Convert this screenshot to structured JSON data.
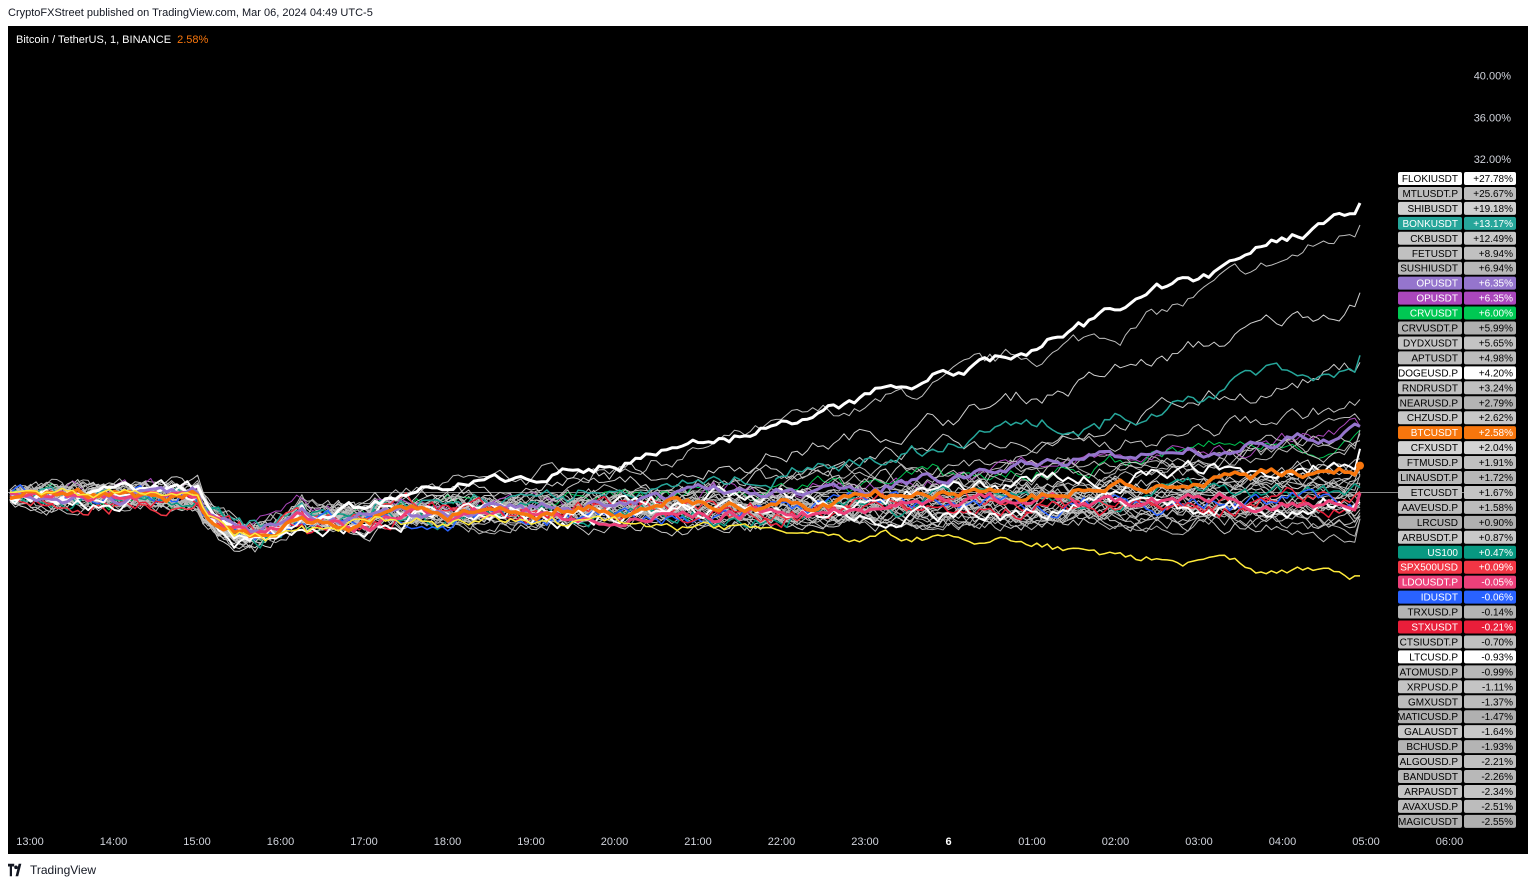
{
  "header": {
    "publisher_line": "CryptoFXStreet published on TradingView.com, Mar 06, 2024 04:49 UTC-5"
  },
  "legend": {
    "symbol": "Bitcoin / TetherUS, 1, BINANCE",
    "change": "2.58%"
  },
  "footer": {
    "brand": "TradingView"
  },
  "chart_data": {
    "type": "line",
    "x": [
      "13:00",
      "14:00",
      "15:00",
      "16:00",
      "17:00",
      "18:00",
      "19:00",
      "20:00",
      "21:00",
      "22:00",
      "23:00",
      "6",
      "01:00",
      "02:00",
      "03:00",
      "04:00",
      "05:00",
      "06:00"
    ],
    "y_ticks": [
      "40.00%",
      "36.00%",
      "32.00%"
    ],
    "y_tick_values": [
      40,
      36,
      32
    ],
    "ylim": [
      -32,
      44
    ],
    "baseline": 0,
    "series": [
      {
        "name": "FLOKIUSDT",
        "value": "+27.78%",
        "color": "#ffffff",
        "label_text": "#000000",
        "width": 3
      },
      {
        "name": "MTLUSDT.P",
        "value": "+25.67%",
        "color": "#bdbdbd",
        "label_text": "#000000",
        "width": 1
      },
      {
        "name": "SHIBUSDT",
        "value": "+19.18%",
        "color": "#d0d0d0",
        "label_text": "#000000",
        "width": 1
      },
      {
        "name": "BONKUSDT",
        "value": "+13.17%",
        "color": "#26a69a",
        "label_text": "#ffffff",
        "width": 1.5
      },
      {
        "name": "CKBUSDT",
        "value": "+12.49%",
        "color": "#c8c8c8",
        "label_text": "#000000",
        "width": 1
      },
      {
        "name": "FETUSDT",
        "value": "+8.94%",
        "color": "#c0c0c0",
        "label_text": "#000000",
        "width": 1
      },
      {
        "name": "SUSHIUSDT",
        "value": "+6.94%",
        "color": "#b8b8b8",
        "label_text": "#000000",
        "width": 1
      },
      {
        "name": "OPUSDT",
        "value": "+6.35%",
        "color": "#9575cd",
        "label_text": "#ffffff",
        "width": 3
      },
      {
        "name": "OPUSDT",
        "value": "+6.35%",
        "color": "#ab47bc",
        "label_text": "#ffffff",
        "width": 1
      },
      {
        "name": "CRVUSDT",
        "value": "+6.00%",
        "color": "#00c853",
        "label_text": "#ffffff",
        "width": 1
      },
      {
        "name": "CRVUSDT.P",
        "value": "+5.99%",
        "color": "#b0b0b0",
        "label_text": "#000000",
        "width": 1
      },
      {
        "name": "DYDXUSDT",
        "value": "+5.65%",
        "color": "#c4c4c4",
        "label_text": "#000000",
        "width": 1
      },
      {
        "name": "APTUSDT",
        "value": "+4.98%",
        "color": "#bcbcbc",
        "label_text": "#000000",
        "width": 1
      },
      {
        "name": "DOGEUSD.P",
        "value": "+4.20%",
        "color": "#ffffff",
        "label_text": "#000000",
        "width": 2
      },
      {
        "name": "RNDRUSDT",
        "value": "+3.24%",
        "color": "#c0c0c0",
        "label_text": "#000000",
        "width": 1
      },
      {
        "name": "NEARUSD.P",
        "value": "+2.79%",
        "color": "#b4b4b4",
        "label_text": "#000000",
        "width": 1
      },
      {
        "name": "CHZUSD.P",
        "value": "+2.62%",
        "color": "#c8c8c8",
        "label_text": "#000000",
        "width": 1
      },
      {
        "name": "BTCUSDT",
        "value": "+2.58%",
        "color": "#f7760d",
        "label_text": "#ffffff",
        "width": 3.5
      },
      {
        "name": "CFXUSDT",
        "value": "+2.04%",
        "color": "#d4d4d4",
        "label_text": "#000000",
        "width": 1
      },
      {
        "name": "FTMUSD.P",
        "value": "+1.91%",
        "color": "#c0c0c0",
        "label_text": "#000000",
        "width": 1
      },
      {
        "name": "LINAUSDT.P",
        "value": "+1.72%",
        "color": "#b8b8b8",
        "label_text": "#000000",
        "width": 1
      },
      {
        "name": "ETCUSDT",
        "value": "+1.67%",
        "color": "#c4c4c4",
        "label_text": "#000000",
        "width": 1
      },
      {
        "name": "AAVEUSD.P",
        "value": "+1.58%",
        "color": "#bcbcbc",
        "label_text": "#000000",
        "width": 1
      },
      {
        "name": "LRCUSD",
        "value": "+0.90%",
        "color": "#b0b0b0",
        "label_text": "#000000",
        "width": 1
      },
      {
        "name": "ARBUSDT.P",
        "value": "+0.87%",
        "color": "#c8c8c8",
        "label_text": "#000000",
        "width": 1
      },
      {
        "name": "US100",
        "value": "+0.47%",
        "color": "#089981",
        "label_text": "#ffffff",
        "width": 1.5
      },
      {
        "name": "SPX500USD",
        "value": "+0.09%",
        "color": "#f23645",
        "label_text": "#ffffff",
        "width": 1.5
      },
      {
        "name": "LDOUSDT.P",
        "value": "-0.05%",
        "color": "#ec407a",
        "label_text": "#ffffff",
        "width": 3
      },
      {
        "name": "IDUSDT",
        "value": "-0.06%",
        "color": "#2962ff",
        "label_text": "#ffffff",
        "width": 1.5
      },
      {
        "name": "TRXUSD.P",
        "value": "-0.14%",
        "color": "#b4b4b4",
        "label_text": "#000000",
        "width": 1
      },
      {
        "name": "STXUSDT",
        "value": "-0.21%",
        "color": "#e91e3a",
        "label_text": "#ffffff",
        "width": 1.5
      },
      {
        "name": "CTSIUSDT.P",
        "value": "-0.70%",
        "color": "#c0c0c0",
        "label_text": "#000000",
        "width": 1
      },
      {
        "name": "LTCUSD.P",
        "value": "-0.93%",
        "color": "#ffffff",
        "label_text": "#000000",
        "width": 2
      },
      {
        "name": "ATOMUSD.P",
        "value": "-0.99%",
        "color": "#b8b8b8",
        "label_text": "#000000",
        "width": 1
      },
      {
        "name": "XRPUSD.P",
        "value": "-1.11%",
        "color": "#c4c4c4",
        "label_text": "#000000",
        "width": 1
      },
      {
        "name": "GMXUSDT",
        "value": "-1.37%",
        "color": "#bcbcbc",
        "label_text": "#000000",
        "width": 1
      },
      {
        "name": "MATICUSD.P",
        "value": "-1.47%",
        "color": "#b0b0b0",
        "label_text": "#000000",
        "width": 1
      },
      {
        "name": "GALAUSDT",
        "value": "-1.64%",
        "color": "#c8c8c8",
        "label_text": "#000000",
        "width": 1
      },
      {
        "name": "BCHUSD.P",
        "value": "-1.93%",
        "color": "#b4b4b4",
        "label_text": "#000000",
        "width": 1
      },
      {
        "name": "ALGOUSD.P",
        "value": "-2.21%",
        "color": "#c0c0c0",
        "label_text": "#000000",
        "width": 1
      },
      {
        "name": "BANDUSDT",
        "value": "-2.26%",
        "color": "#b8b8b8",
        "label_text": "#000000",
        "width": 1
      },
      {
        "name": "ARPAUSDT",
        "value": "-2.34%",
        "color": "#c4c4c4",
        "label_text": "#000000",
        "width": 1
      },
      {
        "name": "AVAXUSD.P",
        "value": "-2.51%",
        "color": "#bcbcbc",
        "label_text": "#000000",
        "width": 1
      },
      {
        "name": "MAGICUSDT",
        "value": "-2.55%",
        "color": "#b0b0b0",
        "label_text": "#000000",
        "width": 1
      }
    ],
    "highlight_line": {
      "name": "yellow",
      "color": "#ffeb3b"
    }
  }
}
